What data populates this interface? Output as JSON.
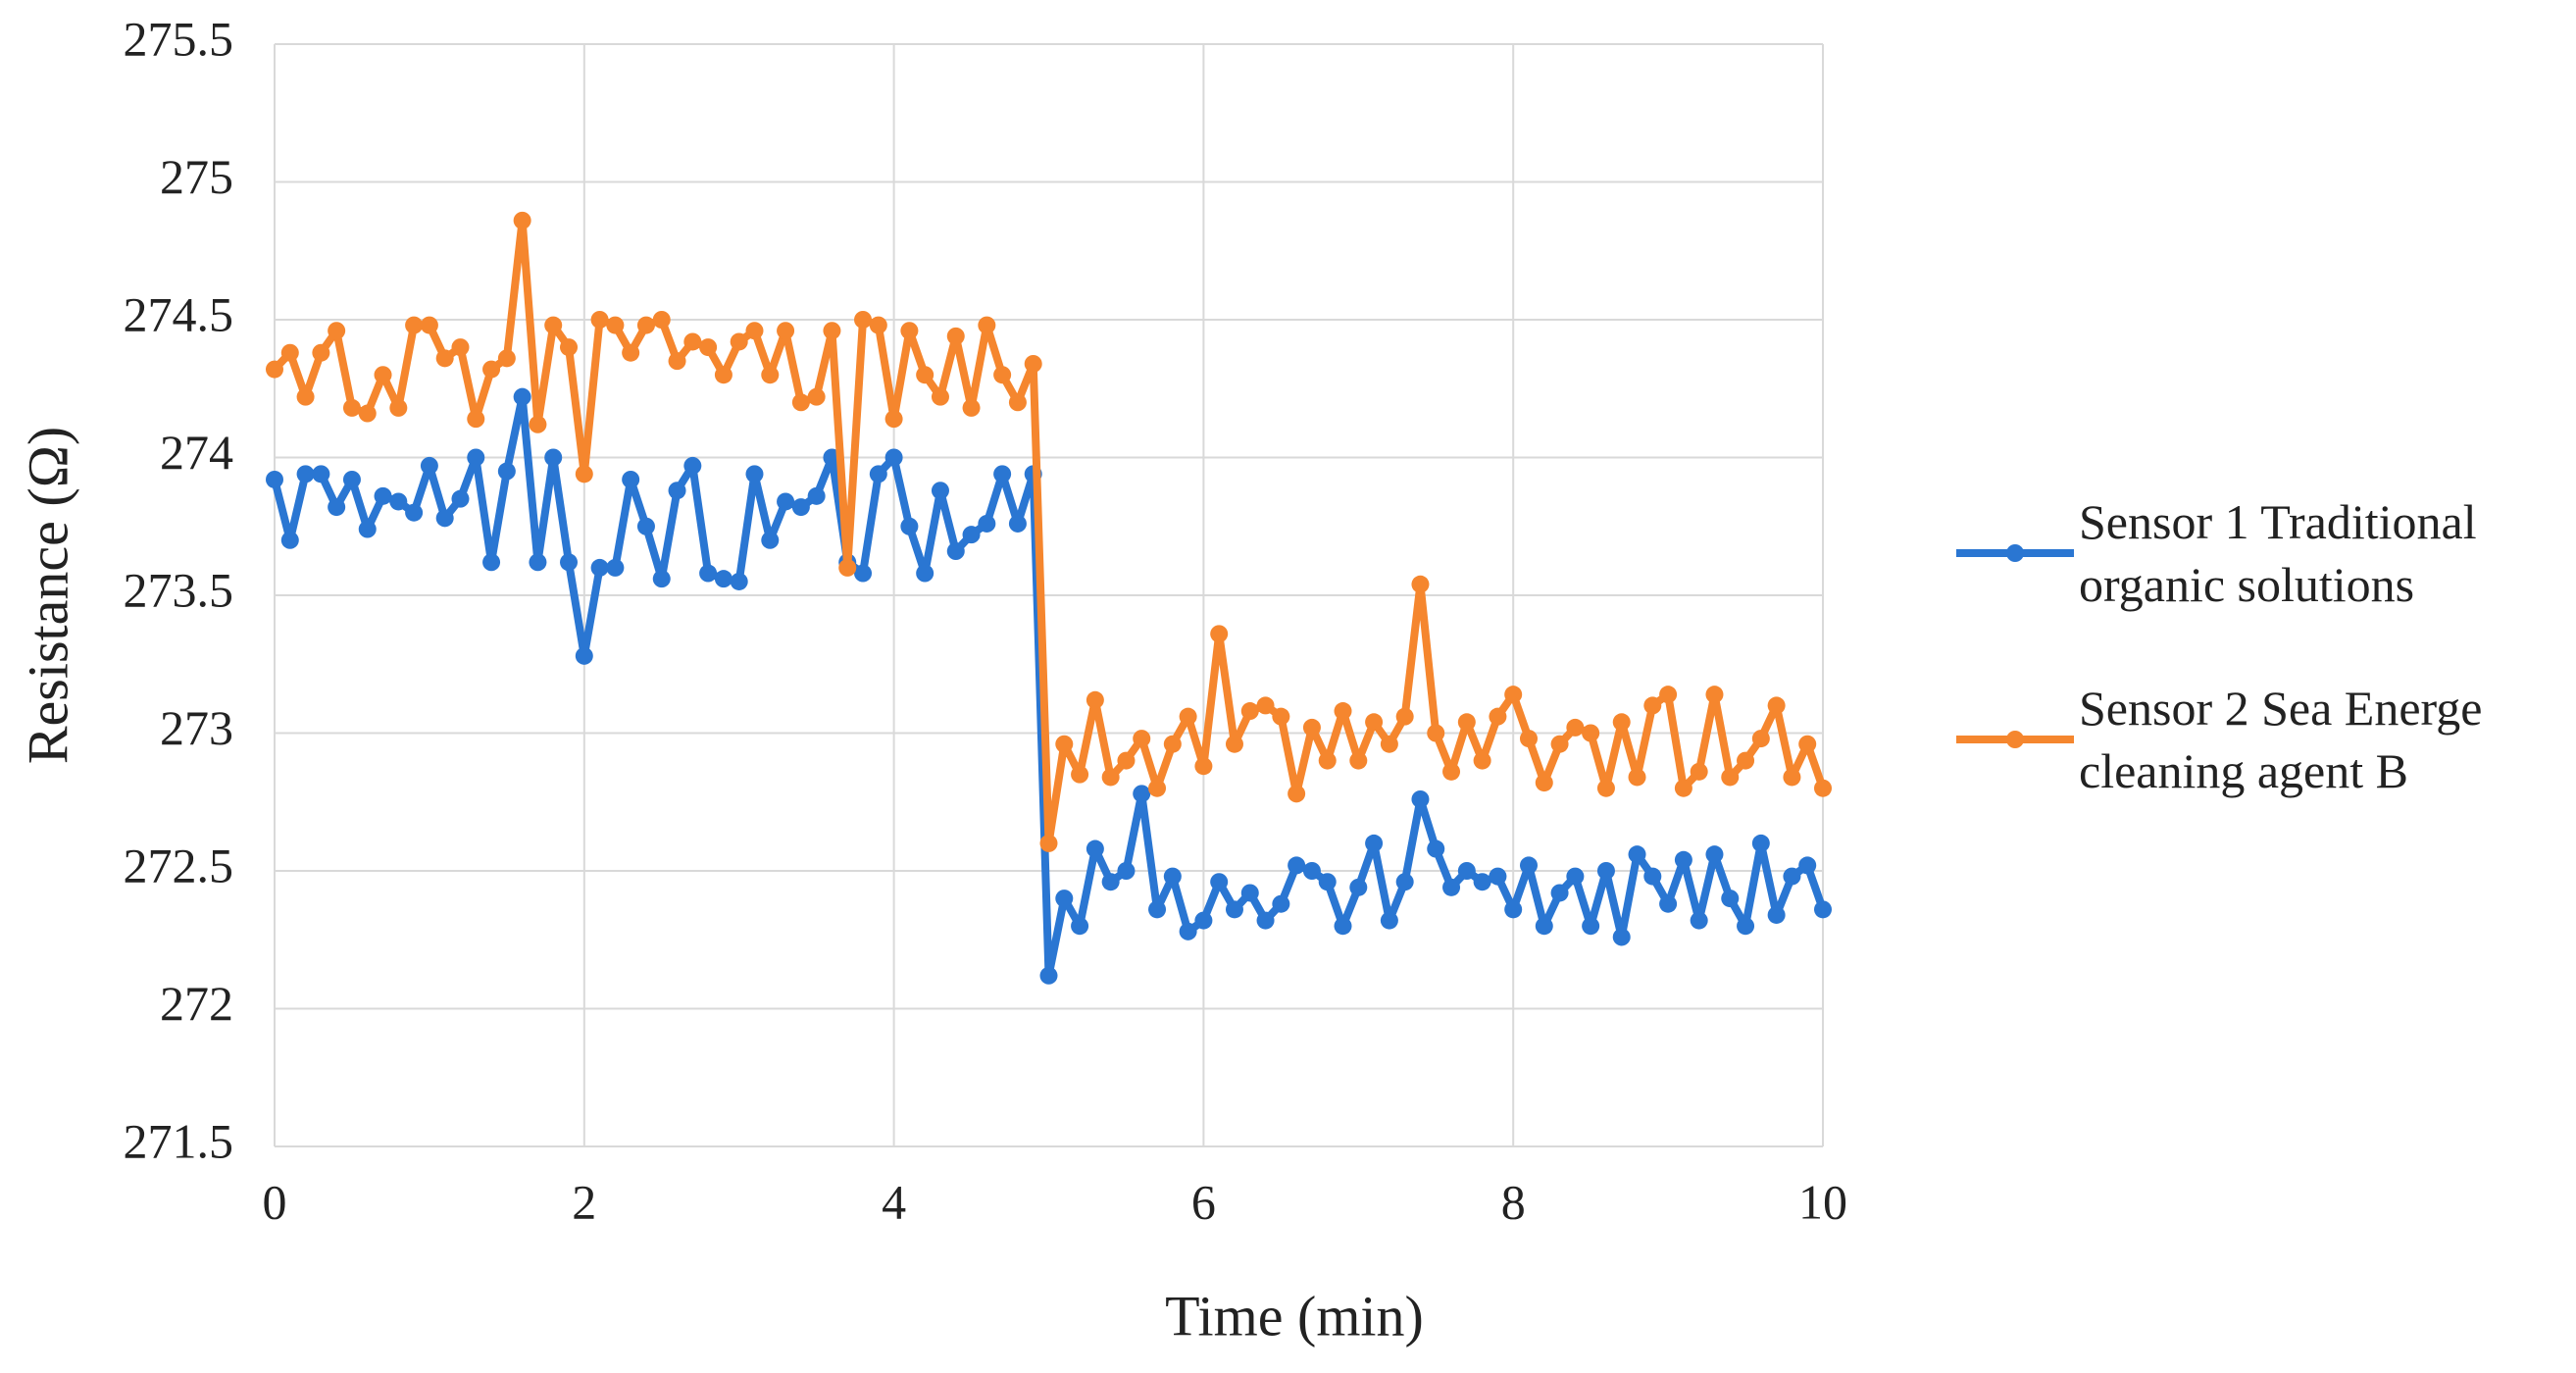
{
  "chart_data": {
    "type": "line",
    "xlabel": "Time (min)",
    "ylabel": "Resistance (Ω)",
    "x": [
      0,
      0.1,
      0.2,
      0.3,
      0.4,
      0.5,
      0.6,
      0.7,
      0.8,
      0.9,
      1,
      1.1,
      1.2,
      1.3,
      1.4,
      1.5,
      1.6,
      1.7,
      1.8,
      1.9,
      2,
      2.1,
      2.2,
      2.3,
      2.4,
      2.5,
      2.6,
      2.7,
      2.8,
      2.9,
      3,
      3.1,
      3.2,
      3.3,
      3.4,
      3.5,
      3.6,
      3.7,
      3.8,
      3.9,
      4,
      4.1,
      4.2,
      4.3,
      4.4,
      4.5,
      4.6,
      4.7,
      4.8,
      4.9,
      5,
      5.1,
      5.2,
      5.3,
      5.4,
      5.5,
      5.6,
      5.7,
      5.8,
      5.9,
      6,
      6.1,
      6.2,
      6.3,
      6.4,
      6.5,
      6.6,
      6.7,
      6.8,
      6.9,
      7,
      7.1,
      7.2,
      7.3,
      7.4,
      7.5,
      7.6,
      7.7,
      7.8,
      7.9,
      8,
      8.1,
      8.2,
      8.3,
      8.4,
      8.5,
      8.6,
      8.7,
      8.8,
      8.9,
      9,
      9.1,
      9.2,
      9.3,
      9.4,
      9.5,
      9.6,
      9.7,
      9.8,
      9.9,
      10
    ],
    "series": [
      {
        "name": "Sensor 1 Traditional organic solutions",
        "color": "#2a76d2",
        "values": [
          273.92,
          273.7,
          273.94,
          273.94,
          273.82,
          273.92,
          273.74,
          273.86,
          273.84,
          273.8,
          273.97,
          273.78,
          273.85,
          274.0,
          273.62,
          273.95,
          274.22,
          273.62,
          274.0,
          273.62,
          273.28,
          273.6,
          273.6,
          273.92,
          273.75,
          273.56,
          273.88,
          273.97,
          273.58,
          273.56,
          273.55,
          273.94,
          273.7,
          273.84,
          273.82,
          273.86,
          274.0,
          273.62,
          273.58,
          273.94,
          274.0,
          273.75,
          273.58,
          273.88,
          273.66,
          273.72,
          273.76,
          273.94,
          273.76,
          273.94,
          272.12,
          272.4,
          272.3,
          272.58,
          272.46,
          272.5,
          272.78,
          272.36,
          272.48,
          272.28,
          272.32,
          272.46,
          272.36,
          272.42,
          272.32,
          272.38,
          272.52,
          272.5,
          272.46,
          272.3,
          272.44,
          272.6,
          272.32,
          272.46,
          272.76,
          272.58,
          272.44,
          272.5,
          272.46,
          272.48,
          272.36,
          272.52,
          272.3,
          272.42,
          272.48,
          272.3,
          272.5,
          272.26,
          272.56,
          272.48,
          272.38,
          272.54,
          272.32,
          272.56,
          272.4,
          272.3,
          272.6,
          272.34,
          272.48,
          272.52,
          272.36
        ]
      },
      {
        "name": "Sensor 2 Sea Energe cleaning agent B",
        "color": "#f5862e",
        "values": [
          274.32,
          274.38,
          274.22,
          274.38,
          274.46,
          274.18,
          274.16,
          274.3,
          274.18,
          274.48,
          274.48,
          274.36,
          274.4,
          274.14,
          274.32,
          274.36,
          274.86,
          274.12,
          274.48,
          274.4,
          273.94,
          274.5,
          274.48,
          274.38,
          274.48,
          274.5,
          274.35,
          274.42,
          274.4,
          274.3,
          274.42,
          274.46,
          274.3,
          274.46,
          274.2,
          274.22,
          274.46,
          273.6,
          274.5,
          274.48,
          274.14,
          274.46,
          274.3,
          274.22,
          274.44,
          274.18,
          274.48,
          274.3,
          274.2,
          274.34,
          272.6,
          272.96,
          272.85,
          273.12,
          272.84,
          272.9,
          272.98,
          272.8,
          272.96,
          273.06,
          272.88,
          273.36,
          272.96,
          273.08,
          273.1,
          273.06,
          272.78,
          273.02,
          272.9,
          273.08,
          272.9,
          273.04,
          272.96,
          273.06,
          273.54,
          273.0,
          272.86,
          273.04,
          272.9,
          273.06,
          273.14,
          272.98,
          272.82,
          272.96,
          273.02,
          273.0,
          272.8,
          273.04,
          272.84,
          273.1,
          273.14,
          272.8,
          272.86,
          273.14,
          272.84,
          272.9,
          272.98,
          273.1,
          272.84,
          272.96,
          272.8
        ]
      }
    ],
    "xlim": [
      0,
      10
    ],
    "xticks": [
      0,
      2,
      4,
      6,
      8,
      10
    ],
    "ylim": [
      271.5,
      275.5
    ],
    "yticks": [
      271.5,
      272,
      272.5,
      273,
      273.5,
      274,
      274.5,
      275,
      275.5
    ],
    "grid": true,
    "legend": "right"
  }
}
